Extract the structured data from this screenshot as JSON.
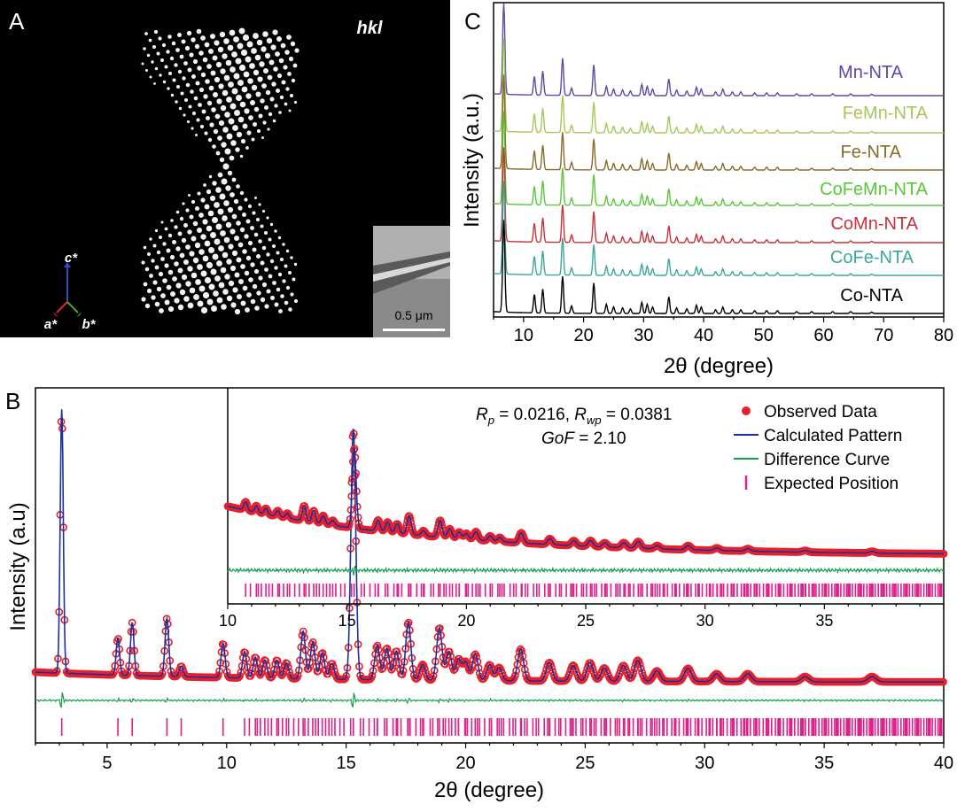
{
  "panel_labels": {
    "a": "A",
    "b": "B",
    "c": "C"
  },
  "panel_a": {
    "title": "hkl",
    "scale_bar": "0.5 μm",
    "axis_c": "c*",
    "axis_a": "a*",
    "axis_b": "b*",
    "colors": {
      "c": "#2a4fc2",
      "a": "#d42a2a",
      "b": "#4aa42a"
    }
  },
  "panel_b": {
    "stats_line1": {
      "r": "R",
      "p": "p",
      "val1": " = 0.0216, ",
      "r2": "R",
      "wp": "wp",
      "val2": " = 0.0381"
    },
    "stats_line2": {
      "gof": "GoF",
      "val": " = 2.10"
    }
  },
  "chart_data": [
    {
      "type": "line",
      "panel": "C",
      "xlabel": "2θ (degree)",
      "ylabel": "Intensity (a.u.)",
      "xlim": [
        5,
        80
      ],
      "xticks": [
        10,
        20,
        30,
        40,
        50,
        60,
        70,
        80
      ],
      "peaks_2theta": [
        6.7,
        11.8,
        13.2,
        16.5,
        18.0,
        21.7,
        23.8,
        25.0,
        26.5,
        27.8,
        29.7,
        30.6,
        31.5,
        34.2,
        35.5,
        37.2,
        38.8,
        39.6,
        42.0,
        43.2,
        44.8,
        46.2,
        48.5,
        50.5,
        52.3,
        55.5,
        58.0,
        61.5,
        64.5,
        68.0
      ],
      "peak_heights": [
        1.0,
        0.2,
        0.26,
        0.4,
        0.08,
        0.33,
        0.1,
        0.07,
        0.06,
        0.05,
        0.12,
        0.1,
        0.07,
        0.18,
        0.06,
        0.05,
        0.09,
        0.07,
        0.04,
        0.07,
        0.04,
        0.04,
        0.03,
        0.03,
        0.03,
        0.02,
        0.02,
        0.02,
        0.02,
        0.015
      ],
      "series": [
        {
          "name": "Mn-NTA",
          "color": "#5b4aa6"
        },
        {
          "name": "FeMn-NTA",
          "color": "#a6c85a"
        },
        {
          "name": "Fe-NTA",
          "color": "#8a6a2a"
        },
        {
          "name": "CoFeMn-NTA",
          "color": "#5ac83a"
        },
        {
          "name": "CoMn-NTA",
          "color": "#c8323a"
        },
        {
          "name": "CoFe-NTA",
          "color": "#3aa89a"
        },
        {
          "name": "Co-NTA",
          "color": "#000000"
        }
      ]
    },
    {
      "type": "line",
      "panel": "B",
      "xlabel": "2θ (degree)",
      "ylabel": "Intensity (a.u)",
      "xlim": [
        2,
        40
      ],
      "xticks": [
        5,
        10,
        15,
        20,
        25,
        30,
        35,
        40
      ],
      "legend": [
        "Observed Data",
        "Calculated Pattern",
        "Difference Curve",
        "Expected Position"
      ],
      "legend_position": "top-right",
      "colors": {
        "observed": "#e8202a",
        "calculated": "#1f2f9a",
        "difference": "#12a04a",
        "expected": "#e0208a"
      },
      "peaks_2theta": [
        3.1,
        5.45,
        6.05,
        7.5,
        8.1,
        9.85,
        10.75,
        11.2,
        11.6,
        12.1,
        12.5,
        13.2,
        13.6,
        14.0,
        14.4,
        15.3,
        16.3,
        16.7,
        17.1,
        17.6,
        18.2,
        18.9,
        19.3,
        19.7,
        20.0,
        20.4,
        21.0,
        21.4,
        22.3,
        23.5,
        24.5,
        25.2,
        25.8,
        26.6,
        27.2,
        28.0,
        29.3,
        30.5,
        31.8,
        34.2,
        37.0
      ],
      "peak_intensity_relative": [
        1.0,
        0.14,
        0.2,
        0.22,
        0.04,
        0.13,
        0.1,
        0.08,
        0.07,
        0.07,
        0.06,
        0.18,
        0.14,
        0.1,
        0.06,
        0.95,
        0.13,
        0.12,
        0.11,
        0.22,
        0.06,
        0.2,
        0.11,
        0.08,
        0.07,
        0.1,
        0.06,
        0.05,
        0.12,
        0.07,
        0.06,
        0.07,
        0.05,
        0.06,
        0.08,
        0.04,
        0.05,
        0.03,
        0.03,
        0.02,
        0.02
      ],
      "inset": {
        "xlim": [
          10,
          40
        ],
        "xticks": [
          10,
          15,
          20,
          25,
          30,
          35
        ]
      }
    }
  ]
}
